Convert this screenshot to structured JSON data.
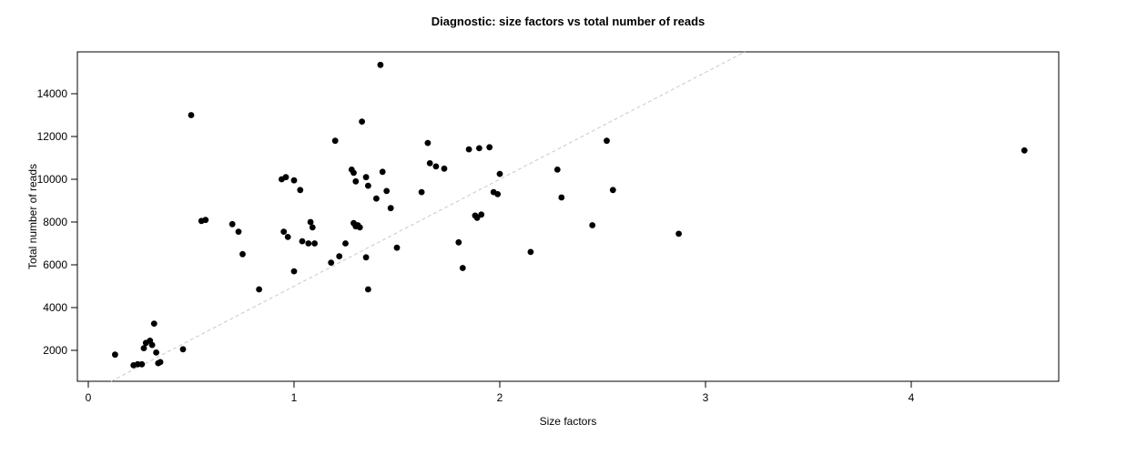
{
  "chart_data": {
    "type": "scatter",
    "title": "Diagnostic: size factors vs total number of reads",
    "xlabel": "Size factors",
    "ylabel": "Total number of reads",
    "x_ticks": [
      0,
      1,
      2,
      3,
      4
    ],
    "y_ticks": [
      2000,
      4000,
      6000,
      8000,
      10000,
      12000,
      14000
    ],
    "xlim": [
      -0.05,
      4.72
    ],
    "ylim": [
      550,
      15950
    ],
    "grid": false,
    "legend": "none",
    "point_color": "#000000",
    "reference_line": {
      "type": "abline",
      "slope": 5000,
      "intercept": 0,
      "style": "dashed",
      "color": "#c9c9c9"
    },
    "points": [
      [
        0.13,
        1800
      ],
      [
        0.22,
        1300
      ],
      [
        0.24,
        1350
      ],
      [
        0.26,
        1350
      ],
      [
        0.27,
        2100
      ],
      [
        0.28,
        2350
      ],
      [
        0.3,
        2450
      ],
      [
        0.31,
        2250
      ],
      [
        0.32,
        3250
      ],
      [
        0.33,
        1900
      ],
      [
        0.34,
        1400
      ],
      [
        0.35,
        1450
      ],
      [
        0.46,
        2050
      ],
      [
        0.5,
        13000
      ],
      [
        0.55,
        8050
      ],
      [
        0.57,
        8100
      ],
      [
        0.7,
        7900
      ],
      [
        0.73,
        7550
      ],
      [
        0.75,
        6500
      ],
      [
        0.83,
        4850
      ],
      [
        0.94,
        10000
      ],
      [
        0.96,
        10100
      ],
      [
        0.95,
        7550
      ],
      [
        0.97,
        7300
      ],
      [
        1.0,
        9950
      ],
      [
        1.0,
        5700
      ],
      [
        1.03,
        9500
      ],
      [
        1.04,
        7100
      ],
      [
        1.07,
        7000
      ],
      [
        1.08,
        8000
      ],
      [
        1.09,
        7750
      ],
      [
        1.1,
        7000
      ],
      [
        1.18,
        6100
      ],
      [
        1.2,
        11800
      ],
      [
        1.22,
        6400
      ],
      [
        1.25,
        7000
      ],
      [
        1.28,
        10450
      ],
      [
        1.29,
        10300
      ],
      [
        1.3,
        9900
      ],
      [
        1.29,
        7950
      ],
      [
        1.31,
        7850
      ],
      [
        1.3,
        7800
      ],
      [
        1.32,
        7750
      ],
      [
        1.33,
        12700
      ],
      [
        1.35,
        10100
      ],
      [
        1.36,
        9700
      ],
      [
        1.35,
        6350
      ],
      [
        1.36,
        4850
      ],
      [
        1.4,
        9100
      ],
      [
        1.42,
        15350
      ],
      [
        1.43,
        10350
      ],
      [
        1.45,
        9450
      ],
      [
        1.47,
        8650
      ],
      [
        1.5,
        6800
      ],
      [
        1.62,
        9400
      ],
      [
        1.65,
        11700
      ],
      [
        1.66,
        10750
      ],
      [
        1.69,
        10600
      ],
      [
        1.73,
        10500
      ],
      [
        1.8,
        7050
      ],
      [
        1.82,
        5850
      ],
      [
        1.85,
        11400
      ],
      [
        1.88,
        8300
      ],
      [
        1.89,
        8200
      ],
      [
        1.91,
        8350
      ],
      [
        1.9,
        11450
      ],
      [
        1.95,
        11500
      ],
      [
        1.97,
        9400
      ],
      [
        1.99,
        9300
      ],
      [
        2.0,
        10250
      ],
      [
        2.15,
        6600
      ],
      [
        2.28,
        10450
      ],
      [
        2.3,
        9150
      ],
      [
        2.45,
        7850
      ],
      [
        2.52,
        11800
      ],
      [
        2.55,
        9500
      ],
      [
        2.87,
        7450
      ],
      [
        4.55,
        11350
      ]
    ]
  }
}
